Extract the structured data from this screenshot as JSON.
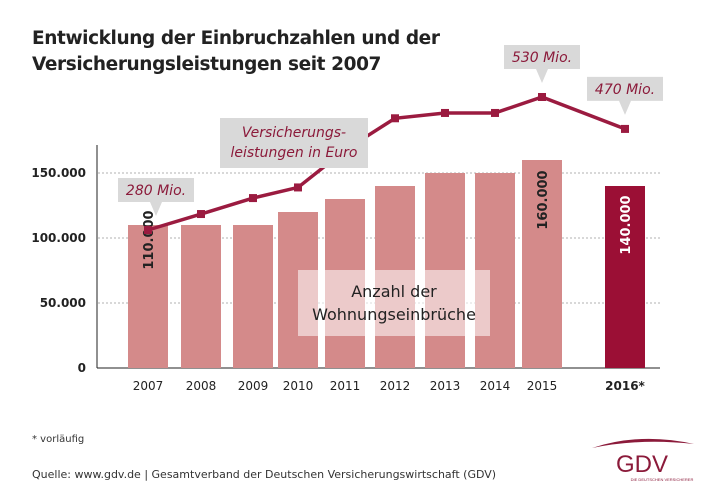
{
  "title": "Entwicklung der Einbruchzahlen und der\nVersicherungsleistungen seit 2007",
  "chart_data": {
    "type": "bar+line",
    "categories": [
      "2007",
      "2008",
      "2009",
      "2010",
      "2011",
      "2012",
      "2013",
      "2014",
      "2015",
      "2016*"
    ],
    "bar_series": {
      "name": "Anzahl der Wohnungseinbrüche",
      "values": [
        110000,
        110000,
        110000,
        120000,
        130000,
        140000,
        150000,
        150000,
        160000,
        140000
      ],
      "data_labels": {
        "0": "110.000",
        "8": "160.000",
        "9": "140.000"
      }
    },
    "line_series": {
      "name": "Versicherungsleistungen in Euro",
      "unit": "Mio.",
      "values": [
        280,
        310,
        340,
        360,
        430,
        490,
        500,
        500,
        530,
        470
      ],
      "data_labels": {
        "0": "280 Mio.",
        "8": "530 Mio.",
        "9": "470 Mio."
      }
    },
    "yticks": [
      "0",
      "50.000",
      "100.000",
      "150.000"
    ],
    "ylim": [
      0,
      170000
    ],
    "grid": "dotted horizontal",
    "colors": {
      "bars": "#d48a8a",
      "bar_highlight": "#9b0f35",
      "line": "#9b1b40",
      "label_box": "#d9d9d9"
    }
  },
  "line_label": "Versicherungs-\nleistungen in Euro",
  "bar_label": "Anzahl der\nWohnungseinbrüche",
  "footnote": "* vorläufig",
  "source": "Quelle: www.gdv.de | Gesamtverband der Deutschen Versicherungswirtschaft (GDV)",
  "logo": {
    "text": "GDV",
    "subtext": "DIE DEUTSCHEN VERSICHERER"
  }
}
